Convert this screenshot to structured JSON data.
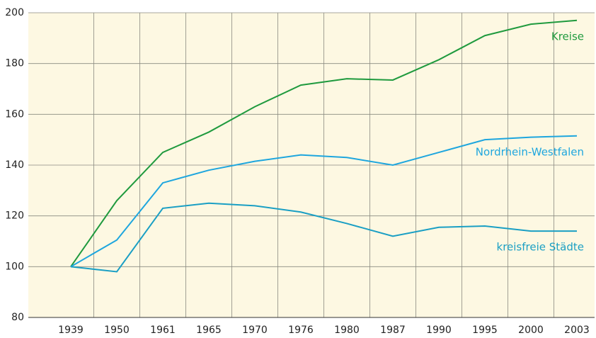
{
  "chart_data": {
    "type": "line",
    "categories": [
      "1939",
      "1950",
      "1961",
      "1965",
      "1970",
      "1976",
      "1980",
      "1987",
      "1990",
      "1995",
      "2000",
      "2003"
    ],
    "series": [
      {
        "name": "Kreise",
        "color": "#1f9a3e",
        "values": [
          100,
          126,
          145,
          153,
          163,
          171.5,
          174,
          173.5,
          181.5,
          191,
          195.5,
          197
        ]
      },
      {
        "name": "Nordrhein-Westfalen",
        "color": "#1ea6de",
        "values": [
          100,
          110.5,
          133,
          138,
          141.5,
          144,
          143,
          140,
          145,
          150,
          151,
          151.5
        ]
      },
      {
        "name": "kreisfreie Städte",
        "color": "#1a9fc4",
        "values": [
          100,
          98,
          123,
          125,
          124,
          121.5,
          117,
          112,
          115.5,
          116,
          114,
          114
        ]
      }
    ],
    "ylim": [
      80,
      200
    ],
    "yticks": [
      80,
      100,
      120,
      140,
      160,
      180,
      200
    ],
    "grid": true
  }
}
